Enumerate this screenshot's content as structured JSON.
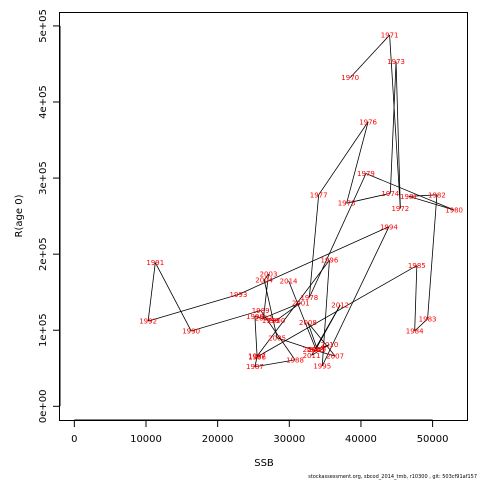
{
  "chart_data": {
    "type": "line",
    "title": "",
    "xlabel": "SSB",
    "ylabel": "R(age 0)",
    "xlim": [
      -2000,
      54800
    ],
    "ylim": [
      -18000,
      517000
    ],
    "x_ticks": [
      0,
      10000,
      20000,
      30000,
      40000,
      50000
    ],
    "x_tick_labels": [
      "0",
      "10000",
      "20000",
      "30000",
      "40000",
      "50000"
    ],
    "y_ticks": [
      0,
      100000,
      200000,
      300000,
      400000,
      500000
    ],
    "y_tick_labels": [
      "0e+00",
      "1e+05",
      "2e+05",
      "3e+05",
      "4e+05",
      "5e+05"
    ],
    "grid": false,
    "line_color": "#000000",
    "label_color": "#ff0000",
    "points": [
      {
        "year": "1970",
        "x": 38500,
        "y": 432000
      },
      {
        "year": "1971",
        "x": 44000,
        "y": 488000
      },
      {
        "year": "1972",
        "x": 45500,
        "y": 260000
      },
      {
        "year": "1973",
        "x": 44900,
        "y": 453000
      },
      {
        "year": "1974",
        "x": 44100,
        "y": 280000
      },
      {
        "year": "1975",
        "x": 38000,
        "y": 267000
      },
      {
        "year": "1976",
        "x": 41000,
        "y": 374000
      },
      {
        "year": "1977",
        "x": 34100,
        "y": 278000
      },
      {
        "year": "1978",
        "x": 32800,
        "y": 143000
      },
      {
        "year": "1979",
        "x": 40700,
        "y": 306000
      },
      {
        "year": "1980",
        "x": 53000,
        "y": 258000
      },
      {
        "year": "1981",
        "x": 46700,
        "y": 276000
      },
      {
        "year": "1982",
        "x": 50600,
        "y": 278000
      },
      {
        "year": "1983",
        "x": 49300,
        "y": 115000
      },
      {
        "year": "1984",
        "x": 47500,
        "y": 99000
      },
      {
        "year": "1985",
        "x": 47800,
        "y": 185000
      },
      {
        "year": "1986",
        "x": 25500,
        "y": 65000
      },
      {
        "year": "1987",
        "x": 25200,
        "y": 52000
      },
      {
        "year": "1988",
        "x": 30800,
        "y": 61000
      },
      {
        "year": "1989",
        "x": 26000,
        "y": 126000
      },
      {
        "year": "1990",
        "x": 16300,
        "y": 99000
      },
      {
        "year": "1991",
        "x": 11300,
        "y": 189000
      },
      {
        "year": "1992",
        "x": 10300,
        "y": 112000
      },
      {
        "year": "1993",
        "x": 22900,
        "y": 147000
      },
      {
        "year": "1994",
        "x": 43900,
        "y": 236000
      },
      {
        "year": "1995",
        "x": 34600,
        "y": 53000
      },
      {
        "year": "1996",
        "x": 35600,
        "y": 192000
      },
      {
        "year": "1997",
        "x": 25500,
        "y": 66000
      },
      {
        "year": "1998",
        "x": 25200,
        "y": 118000
      },
      {
        "year": "1999",
        "x": 27400,
        "y": 113000
      },
      {
        "year": "2000",
        "x": 28200,
        "y": 113000
      },
      {
        "year": "2001",
        "x": 31600,
        "y": 136000
      },
      {
        "year": "2002",
        "x": 26400,
        "y": 116000
      },
      {
        "year": "2003",
        "x": 27100,
        "y": 174000
      },
      {
        "year": "2004",
        "x": 26500,
        "y": 166000
      },
      {
        "year": "2005",
        "x": 28300,
        "y": 90000
      },
      {
        "year": "2006",
        "x": 33100,
        "y": 75000
      },
      {
        "year": "2007",
        "x": 36400,
        "y": 66000
      },
      {
        "year": "2008",
        "x": 32600,
        "y": 110000
      },
      {
        "year": "2009",
        "x": 33900,
        "y": 75000
      },
      {
        "year": "2010",
        "x": 35600,
        "y": 81000
      },
      {
        "year": "2011",
        "x": 33100,
        "y": 67000
      },
      {
        "year": "2012",
        "x": 37100,
        "y": 133000
      },
      {
        "year": "2013",
        "x": 33700,
        "y": 75000
      },
      {
        "year": "2014",
        "x": 29900,
        "y": 165000
      }
    ]
  },
  "footer_text": "stockassessment.org, sbcod_2014_tmb, r10300 , git: 503cf91af157"
}
